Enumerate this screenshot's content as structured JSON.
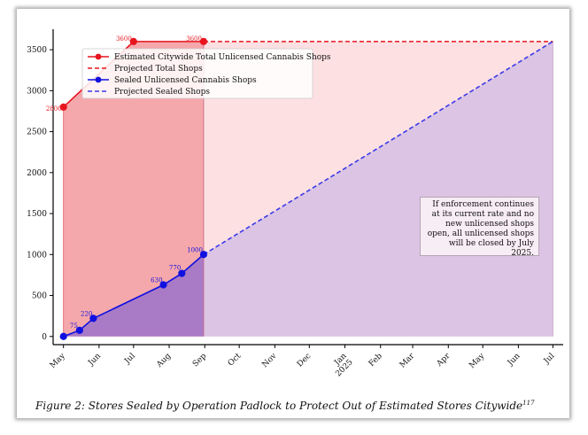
{
  "chart_data": {
    "type": "line",
    "title": "",
    "xlabel": "",
    "ylabel": "",
    "x_ticks": [
      "May",
      "Jun",
      "Jul",
      "Aug",
      "Sep",
      "Oct",
      "Nov",
      "Dec",
      "Jan\n2025",
      "Feb",
      "Mar",
      "Apr",
      "May",
      "Jun",
      "Jul"
    ],
    "y_ticks": [
      0,
      500,
      1000,
      1500,
      2000,
      2500,
      3000,
      3500
    ],
    "ylim": [
      -100,
      3750
    ],
    "series": [
      {
        "name": "Estimated Citywide Total Unlicensed Cannabis Shops",
        "style": "solid",
        "color": "#e8141e",
        "points": [
          {
            "x": "2024-05-01",
            "y": 2800
          },
          {
            "x": "2024-07-01",
            "y": 3600
          },
          {
            "x": "2024-08-31",
            "y": 3600
          }
        ]
      },
      {
        "name": "Projected Total Shops",
        "style": "dashed",
        "color": "#e8141e",
        "points": [
          {
            "x": "2024-08-31",
            "y": 3600
          },
          {
            "x": "2025-07-01",
            "y": 3600
          }
        ]
      },
      {
        "name": "Sealed Unlicensed Cannabis Shops",
        "style": "solid",
        "color": "#1010e0",
        "points": [
          {
            "x": "2024-05-01",
            "y": 0
          },
          {
            "x": "2024-05-15",
            "y": 75
          },
          {
            "x": "2024-05-27",
            "y": 220
          },
          {
            "x": "2024-07-27",
            "y": 630
          },
          {
            "x": "2024-08-12",
            "y": 770
          },
          {
            "x": "2024-08-31",
            "y": 1000
          }
        ]
      },
      {
        "name": "Projected Sealed Shops",
        "style": "dashed",
        "color": "#3a3ae8",
        "points": [
          {
            "x": "2024-08-31",
            "y": 1000
          },
          {
            "x": "2025-07-01",
            "y": 3600
          }
        ]
      }
    ],
    "point_labels": [
      {
        "series": 0,
        "index": 0,
        "text": "2800"
      },
      {
        "series": 0,
        "index": 1,
        "text": "3600"
      },
      {
        "series": 0,
        "index": 2,
        "text": "3600"
      },
      {
        "series": 2,
        "index": 1,
        "text": "75"
      },
      {
        "series": 2,
        "index": 2,
        "text": "220"
      },
      {
        "series": 2,
        "index": 3,
        "text": "630"
      },
      {
        "series": 2,
        "index": 4,
        "text": "770"
      },
      {
        "series": 2,
        "index": 5,
        "text": "1000"
      }
    ],
    "annotation": "If enforcement continues at its current rate and no new unlicensed shops open, all unlicensed shops will be closed by July 2025.",
    "legend_position": "top-left",
    "grid": false,
    "colors": {
      "total_fill": "#f4a3a6",
      "projected_total_fill": "#fde0e2",
      "sealed_fill": "#a97ac6",
      "projected_sealed_fill": "#dcc4e4"
    }
  },
  "caption": {
    "text": "Figure 2: Stores Sealed by Operation Padlock to Protect Out of Estimated Stores Citywide",
    "footnote": "117"
  }
}
